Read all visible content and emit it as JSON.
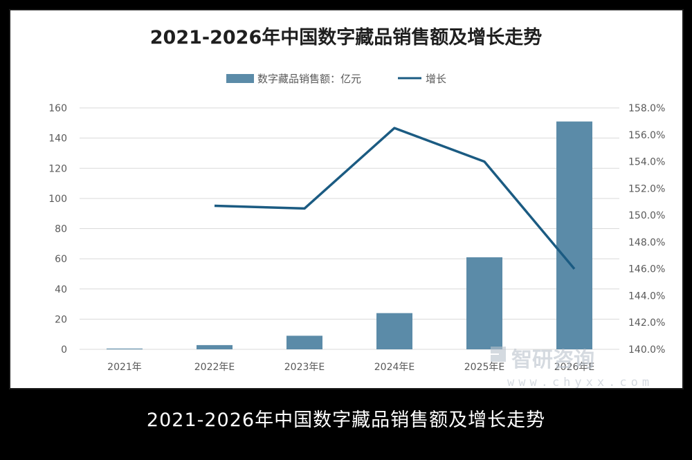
{
  "chart_data": {
    "type": "bar",
    "title": "2021-2026年中国数字藏品销售额及增长走势",
    "categories": [
      "2021年",
      "2022年E",
      "2023年E",
      "2024年E",
      "2025年E",
      "2026年E"
    ],
    "series": [
      {
        "name": "数字藏品销售额：亿元",
        "type": "bar",
        "axis": "left",
        "values": [
          0.5,
          2.8,
          9.0,
          24.0,
          61.0,
          151.0
        ],
        "color": "#5b8ba8"
      },
      {
        "name": "增长",
        "type": "line",
        "axis": "right",
        "values": [
          null,
          150.7,
          150.5,
          156.5,
          154.0,
          146.0
        ],
        "color": "#1b5b82"
      }
    ],
    "y_left": {
      "ylim": [
        0,
        160
      ],
      "ticks": [
        "0",
        "20",
        "40",
        "60",
        "80",
        "100",
        "120",
        "140",
        "160"
      ]
    },
    "y_right": {
      "ylim": [
        140,
        158
      ],
      "ticks": [
        "140.0%",
        "142.0%",
        "144.0%",
        "146.0%",
        "148.0%",
        "150.0%",
        "152.0%",
        "154.0%",
        "156.0%",
        "158.0%"
      ]
    },
    "grid": true,
    "legend_position": "top"
  },
  "caption": "2021-2026年中国数字藏品销售额及增长走势",
  "watermark": {
    "brand": "智研咨询",
    "url": "www.chyxx.com",
    "icon": "chyxx-logo-icon"
  },
  "colors": {
    "bar": "#5b8ba8",
    "line": "#1b5b82",
    "grid": "#d9d9d9",
    "background": "#ffffff",
    "frame": "#000000"
  }
}
